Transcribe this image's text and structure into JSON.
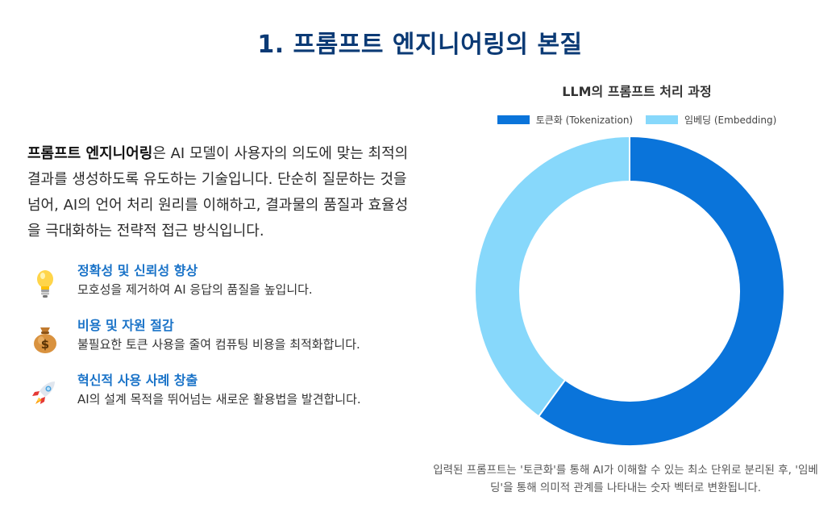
{
  "header": {
    "title": "1. 프롬프트 엔지니어링의 본질"
  },
  "intro": {
    "term": "프롬프트 엔지니어링",
    "text": "은 AI 모델이 사용자의 의도에 맞는 최적의 결과를 생성하도록 유도하는 기술입니다. 단순히 질문하는 것을 넘어, AI의 언어 처리 원리를 이해하고, 결과물의 품질과 효율성을 극대화하는 전략적 접근 방식입니다."
  },
  "features": [
    {
      "icon": "lightbulb-icon",
      "title": "정확성 및 신뢰성 향상",
      "desc": "모호성을 제거하여 AI 응답의 품질을 높입니다."
    },
    {
      "icon": "money-bag-icon",
      "title": "비용 및 자원 절감",
      "desc": "불필요한 토큰 사용을 줄여 컴퓨팅 비용을 최적화합니다."
    },
    {
      "icon": "rocket-icon",
      "title": "혁신적 사용 사례 창출",
      "desc": "AI의 설계 목적을 뛰어넘는 새로운 활용법을 발견합니다."
    }
  ],
  "chart_data": {
    "type": "pie",
    "variant": "doughnut",
    "title": "LLM의 프롬프트 처리 과정",
    "legend_position": "top",
    "categories": [
      "토큰화 (Tokenization)",
      "임베딩 (Embedding)"
    ],
    "values": [
      60,
      40
    ],
    "colors": [
      "#0a74da",
      "#87d8fb"
    ]
  },
  "caption": "입력된 프롬프트는 '토큰화'를 통해 AI가 이해할 수 있는 최소 단위로 분리된 후, '임베딩'을 통해 의미적 관계를 나타내는 숫자 벡터로 변환됩니다."
}
